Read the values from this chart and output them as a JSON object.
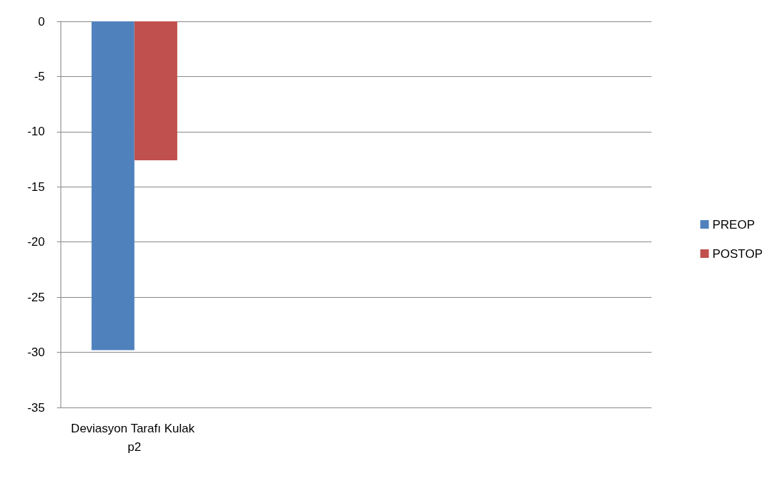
{
  "chart_data": {
    "type": "bar",
    "categories": [
      "Deviasyon Tarafı Kulak p2",
      null,
      null,
      null
    ],
    "series": [
      {
        "name": "PREOP",
        "color": "#4f81bd",
        "values": [
          -29.8,
          null,
          null,
          null
        ]
      },
      {
        "name": "POSTOP",
        "color": "#c0504d",
        "values": [
          -12.6,
          null,
          null,
          null
        ]
      }
    ],
    "ylim": [
      -35,
      0
    ],
    "yticks": [
      -35,
      -30,
      -25,
      -20,
      -15,
      -10,
      -5,
      0
    ],
    "grid": "y",
    "legend": "right"
  }
}
